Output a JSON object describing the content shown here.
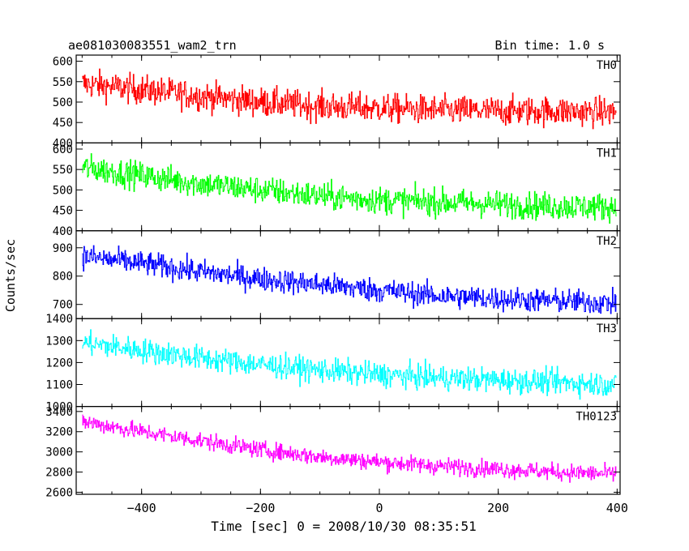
{
  "chart_data": {
    "type": "line",
    "title": "ae081030083551_wam2_trn",
    "bin_time_label": "Bin time: 1.0 s",
    "xlabel": "Time [sec] 0 = 2008/10/30 08:35:51",
    "ylabel": "Counts/sec",
    "xlim": [
      -510,
      405
    ],
    "x_ticks": [
      -400,
      -200,
      0,
      200,
      400
    ],
    "x_tick_labels": [
      "−400",
      "−200",
      "0",
      "200",
      "400"
    ],
    "x_range": [
      -500,
      398
    ],
    "grid": false,
    "panels": [
      {
        "name": "TH0",
        "color": "#ff0000",
        "ylim": [
          400,
          615
        ],
        "y_ticks": [
          400,
          450,
          500,
          550,
          600
        ],
        "y_tick_labels": [
          "400",
          "450",
          "500",
          "550",
          "600"
        ],
        "trend": [
          [
            -500,
            545
          ],
          [
            -400,
            530
          ],
          [
            -300,
            515
          ],
          [
            -200,
            500
          ],
          [
            -100,
            490
          ],
          [
            0,
            485
          ],
          [
            100,
            480
          ],
          [
            200,
            478
          ],
          [
            300,
            478
          ],
          [
            398,
            475
          ]
        ],
        "noise_amplitude": 32
      },
      {
        "name": "TH1",
        "color": "#00ff00",
        "ylim": [
          400,
          615
        ],
        "y_ticks": [
          400,
          450,
          500,
          550,
          600
        ],
        "y_tick_labels": [
          "400",
          "450",
          "500",
          "550",
          "600"
        ],
        "trend": [
          [
            -500,
            555
          ],
          [
            -400,
            535
          ],
          [
            -300,
            515
          ],
          [
            -200,
            500
          ],
          [
            -100,
            485
          ],
          [
            0,
            475
          ],
          [
            100,
            470
          ],
          [
            200,
            465
          ],
          [
            300,
            460
          ],
          [
            398,
            458
          ]
        ],
        "noise_amplitude": 30
      },
      {
        "name": "TH2",
        "color": "#0000ff",
        "ylim": [
          650,
          960
        ],
        "y_ticks": [
          700,
          800,
          900
        ],
        "y_tick_labels": [
          "700",
          "800",
          "900"
        ],
        "trend": [
          [
            -500,
            870
          ],
          [
            -400,
            845
          ],
          [
            -300,
            815
          ],
          [
            -200,
            790
          ],
          [
            -100,
            770
          ],
          [
            0,
            750
          ],
          [
            100,
            730
          ],
          [
            200,
            720
          ],
          [
            300,
            712
          ],
          [
            398,
            705
          ]
        ],
        "noise_amplitude": 38
      },
      {
        "name": "TH3",
        "color": "#00ffff",
        "ylim": [
          1000,
          1400
        ],
        "y_ticks": [
          1000,
          1100,
          1200,
          1300,
          1400
        ],
        "y_tick_labels": [
          "1000",
          "1100",
          "1200",
          "1300",
          "1400"
        ],
        "trend": [
          [
            -500,
            1290
          ],
          [
            -400,
            1255
          ],
          [
            -300,
            1220
          ],
          [
            -200,
            1190
          ],
          [
            -100,
            1165
          ],
          [
            0,
            1145
          ],
          [
            100,
            1130
          ],
          [
            200,
            1120
          ],
          [
            300,
            1110
          ],
          [
            398,
            1100
          ]
        ],
        "noise_amplitude": 50
      },
      {
        "name": "TH0123",
        "color": "#ff00ff",
        "ylim": [
          2580,
          3450
        ],
        "y_ticks": [
          2600,
          2800,
          3000,
          3200,
          3400
        ],
        "y_tick_labels": [
          "2600",
          "2800",
          "3000",
          "3200",
          "3400"
        ],
        "trend": [
          [
            -500,
            3300
          ],
          [
            -400,
            3200
          ],
          [
            -300,
            3110
          ],
          [
            -200,
            3020
          ],
          [
            -100,
            2950
          ],
          [
            0,
            2900
          ],
          [
            100,
            2860
          ],
          [
            200,
            2830
          ],
          [
            300,
            2800
          ],
          [
            398,
            2780
          ]
        ],
        "noise_amplitude": 75
      }
    ]
  }
}
